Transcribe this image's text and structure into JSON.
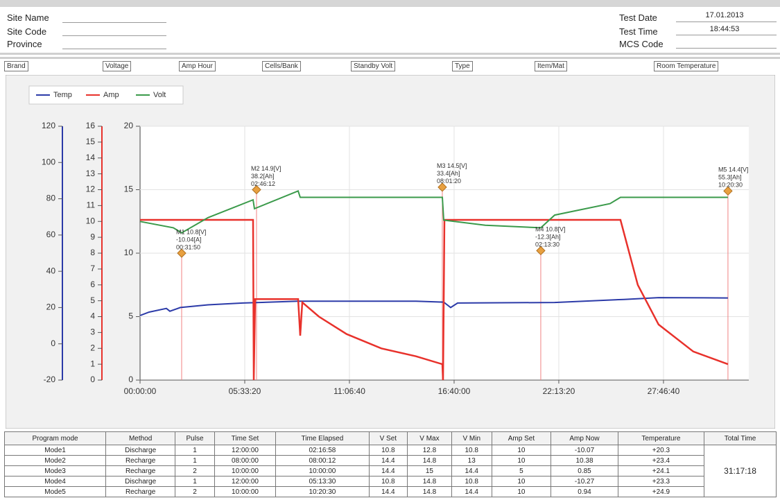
{
  "header": {
    "site_name": "Site Name",
    "site_code": "Site Code",
    "province": "Province",
    "test_date_label": "Test Date",
    "test_date": "17.01.2013",
    "test_time_label": "Test Time",
    "test_time": "18:44:53",
    "mcs_code_label": "MCS Code"
  },
  "fields": [
    "Brand",
    "Voltage",
    "Amp Hour",
    "Cells/Bank",
    "Standby Volt",
    "Type",
    "Item/Mat",
    "Room Temperature"
  ],
  "chart_data": {
    "type": "line",
    "legend": "top-left",
    "grid": true,
    "xlim": [
      0,
      116300
    ],
    "xticks": [
      {
        "value": 0,
        "label": "00:00:00"
      },
      {
        "value": 20000,
        "label": "05:33:20"
      },
      {
        "value": 40000,
        "label": "11:06:40"
      },
      {
        "value": 60000,
        "label": "16:40:00"
      },
      {
        "value": 80000,
        "label": "22:13:20"
      },
      {
        "value": 100000,
        "label": "27:46:40"
      }
    ],
    "ylim": [
      0,
      20
    ],
    "yticks": [
      0,
      5,
      10,
      15,
      20
    ],
    "y2lim": [
      0,
      16
    ],
    "y2ticks": [
      0,
      1,
      2,
      3,
      4,
      5,
      6,
      7,
      8,
      9,
      10,
      11,
      12,
      13,
      14,
      15,
      16
    ],
    "y3lim": [
      -20,
      120
    ],
    "y3ticks": [
      -20,
      0,
      20,
      40,
      60,
      80,
      100,
      120
    ],
    "series": [
      {
        "name": "Temp",
        "color": "#2b3aa8",
        "axis": "y3",
        "x": [
          0,
          1722,
          5033,
          5695,
          7682,
          12980,
          19603,
          30199,
          52715,
          58013,
          59338,
          60662,
          79205,
          92450,
          99073,
          112318
        ],
        "values": [
          15.6,
          17.5,
          19.5,
          18,
          20,
          21.5,
          22.5,
          23.5,
          23.5,
          23,
          20,
          22.5,
          22.8,
          24.5,
          25.5,
          25.3
        ]
      },
      {
        "name": "Amp",
        "color": "#e8312b",
        "axis": "y2",
        "x": [
          0,
          21589,
          21722,
          21987,
          30199,
          30596,
          30993,
          34172,
          39470,
          46093,
          52715,
          57748,
          57880,
          58145,
          91788,
          95099,
          99073,
          105695,
          112318
        ],
        "values": [
          10.1,
          10.1,
          0,
          5.1,
          5.1,
          2.8,
          4.9,
          4.0,
          2.9,
          2.0,
          1.5,
          1.0,
          0,
          10.1,
          10.1,
          6.0,
          3.5,
          1.8,
          1.0
        ]
      },
      {
        "name": "Volt",
        "color": "#3a9a4a",
        "axis": "y",
        "x": [
          0,
          6358,
          7947,
          12980,
          21589,
          21854,
          30199,
          30596,
          57748,
          58013,
          65960,
          76556,
          79205,
          89801,
          91788,
          112318
        ],
        "values": [
          12.5,
          12.0,
          11.6,
          12.8,
          14.2,
          13.5,
          14.9,
          14.4,
          14.4,
          12.6,
          12.2,
          12.0,
          13.0,
          13.9,
          14.4,
          14.4
        ]
      }
    ],
    "annotations": [
      {
        "x": 7947,
        "y": 10.0,
        "lines": [
          "M1 10.8[V]",
          "-10.04[A]",
          "00:31:50"
        ]
      },
      {
        "x": 22251,
        "y": 15.0,
        "lines": [
          "M2 14.9[V]",
          "38.2[Ah]",
          "02:46:12"
        ]
      },
      {
        "x": 57748,
        "y": 15.2,
        "lines": [
          "M3 14.5[V]",
          "33.4[Ah]",
          "08:01:20"
        ]
      },
      {
        "x": 76556,
        "y": 10.2,
        "lines": [
          "M4 10.8[V]",
          "-12.3[Ah]",
          "02:13:30"
        ]
      },
      {
        "x": 112318,
        "y": 14.9,
        "lines": [
          "M5 14.4[V]",
          "55.3[Ah]",
          "10:20:30"
        ]
      }
    ]
  },
  "table": {
    "headers": [
      "Program mode",
      "Method",
      "Pulse",
      "Time Set",
      "Time Elapsed",
      "V Set",
      "V Max",
      "V Min",
      "Amp Set",
      "Amp Now",
      "Temperature",
      "Total Time"
    ],
    "rows": [
      [
        "Mode1",
        "Discharge",
        "1",
        "12:00:00",
        "02:16:58",
        "10.8",
        "12.8",
        "10.8",
        "10",
        "-10.07",
        "+20.3"
      ],
      [
        "Mode2",
        "Recharge",
        "1",
        "08:00:00",
        "08:00:12",
        "14.4",
        "14.8",
        "13",
        "10",
        "10.38",
        "+23.4"
      ],
      [
        "Mode3",
        "Recharge",
        "2",
        "10:00:00",
        "10:00:00",
        "14.4",
        "15",
        "14.4",
        "5",
        "0.85",
        "+24.1"
      ],
      [
        "Mode4",
        "Discharge",
        "1",
        "12:00:00",
        "05:13:30",
        "10.8",
        "14.8",
        "10.8",
        "10",
        "-10.27",
        "+23.3"
      ],
      [
        "Mode5",
        "Recharge",
        "2",
        "10:00:00",
        "10:20:30",
        "14.4",
        "14.8",
        "14.4",
        "10",
        "0.94",
        "+24.9"
      ]
    ],
    "total_time": "31:17:18"
  }
}
